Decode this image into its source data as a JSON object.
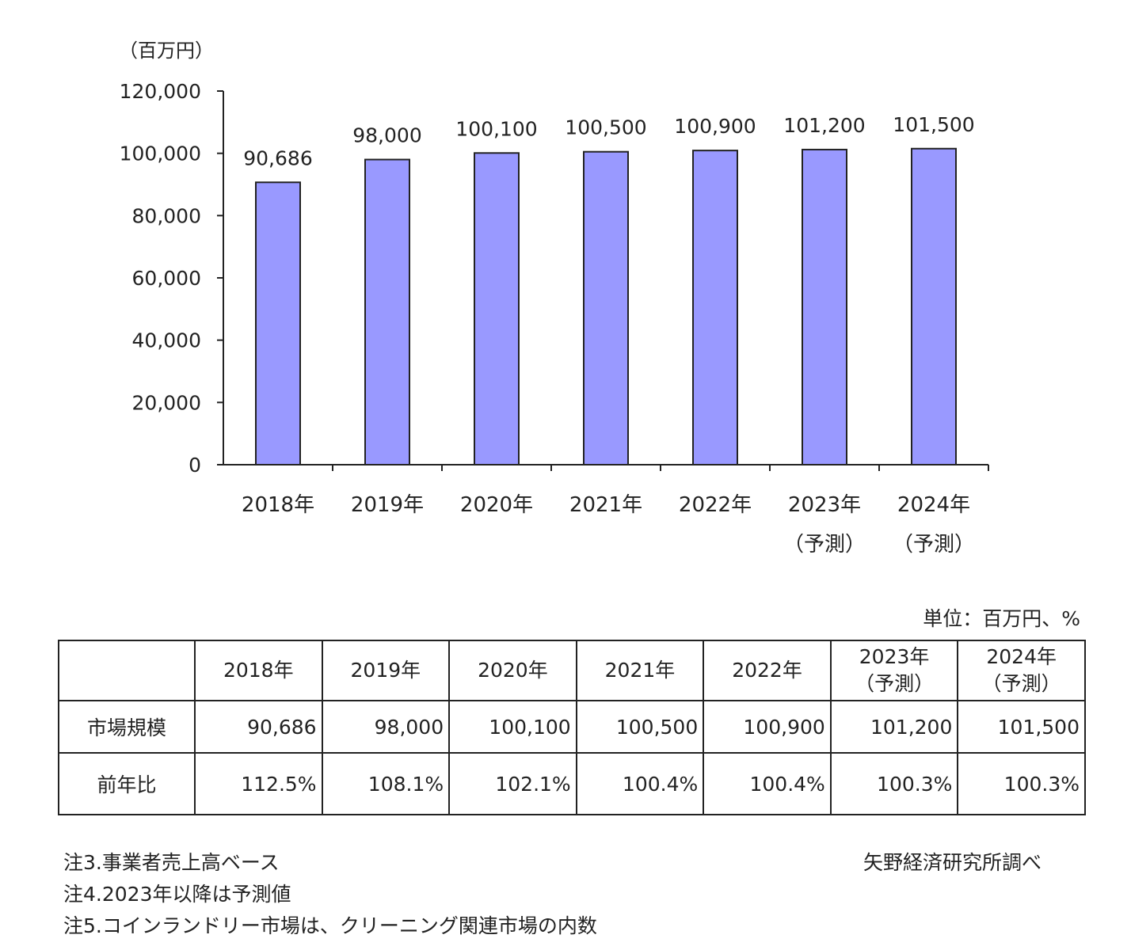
{
  "chart_data": {
    "type": "bar",
    "yunit": "（百万円）",
    "categories": [
      {
        "year": "2018年",
        "sub": ""
      },
      {
        "year": "2019年",
        "sub": ""
      },
      {
        "year": "2020年",
        "sub": ""
      },
      {
        "year": "2021年",
        "sub": ""
      },
      {
        "year": "2022年",
        "sub": ""
      },
      {
        "year": "2023年",
        "sub": "（予測）"
      },
      {
        "year": "2024年",
        "sub": "（予測）"
      }
    ],
    "values": [
      90686,
      98000,
      100100,
      100500,
      100900,
      101200,
      101500
    ],
    "value_labels": [
      "90,686",
      "98,000",
      "100,100",
      "100,500",
      "100,900",
      "101,200",
      "101,500"
    ],
    "ylim": [
      0,
      120000
    ],
    "yticks": [
      "0",
      "20,000",
      "40,000",
      "60,000",
      "80,000",
      "100,000",
      "120,000"
    ],
    "bar_color": "#9999ff",
    "grid": false
  },
  "table": {
    "unit": "単位：百万円、%",
    "headers": [
      {
        "year": "2018年",
        "sub": ""
      },
      {
        "year": "2019年",
        "sub": ""
      },
      {
        "year": "2020年",
        "sub": ""
      },
      {
        "year": "2021年",
        "sub": ""
      },
      {
        "year": "2022年",
        "sub": ""
      },
      {
        "year": "2023年",
        "sub": "（予測）"
      },
      {
        "year": "2024年",
        "sub": "（予測）"
      }
    ],
    "rows": [
      {
        "label": "市場規模",
        "cells": [
          "90,686",
          "98,000",
          "100,100",
          "100,500",
          "100,900",
          "101,200",
          "101,500"
        ]
      },
      {
        "label": "前年比",
        "cells": [
          "112.5%",
          "108.1%",
          "102.1%",
          "100.4%",
          "100.4%",
          "100.3%",
          "100.3%"
        ]
      }
    ]
  },
  "notes": [
    "注3.事業者売上高ベース",
    "注4.2023年以降は予測値",
    "注5.コインランドリー市場は、クリーニング関連市場の内数"
  ],
  "source": "矢野経済研究所調べ"
}
